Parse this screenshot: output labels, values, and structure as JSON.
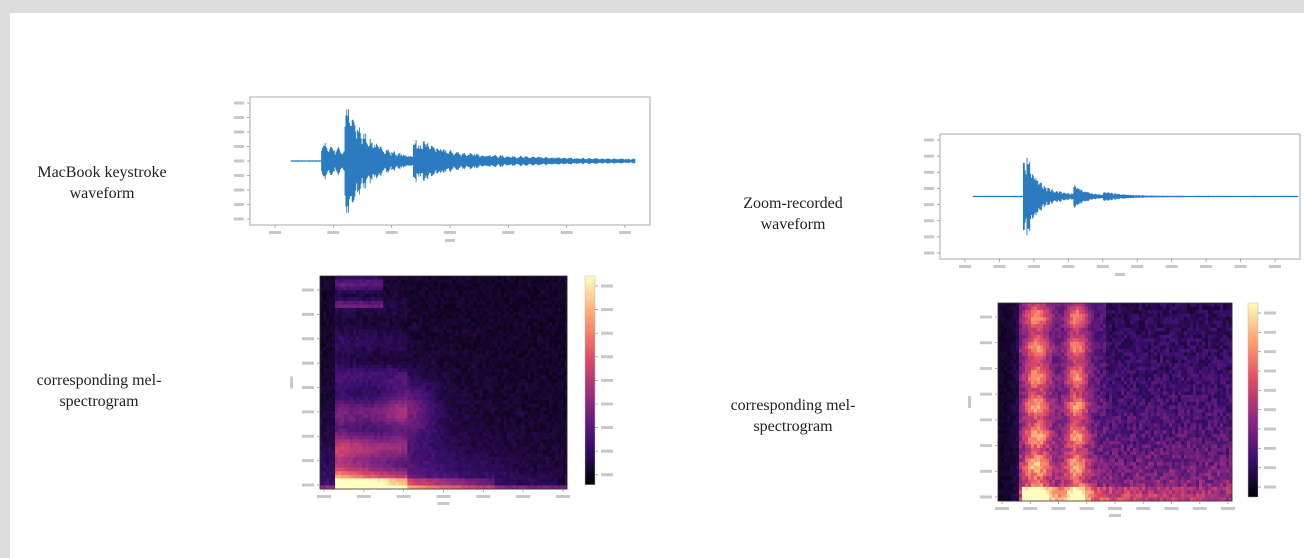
{
  "labels": {
    "macbook_waveform": "MacBook keystroke waveform",
    "macbook_spectrogram": "corresponding mel-spectrogram",
    "zoom_waveform": "Zoom-recorded waveform",
    "zoom_spectrogram": "corresponding mel-spectrogram"
  },
  "colors": {
    "waveform": "#2a7bbf",
    "colormap": [
      "#000004",
      "#3b0f70",
      "#8c2981",
      "#de4968",
      "#fe9f6d",
      "#fcfdbf"
    ]
  },
  "icons": {
    "waveform_plot": "waveform-plot",
    "spectrogram_plot": "spectrogram-heatmap",
    "colorbar": "colorbar"
  }
}
